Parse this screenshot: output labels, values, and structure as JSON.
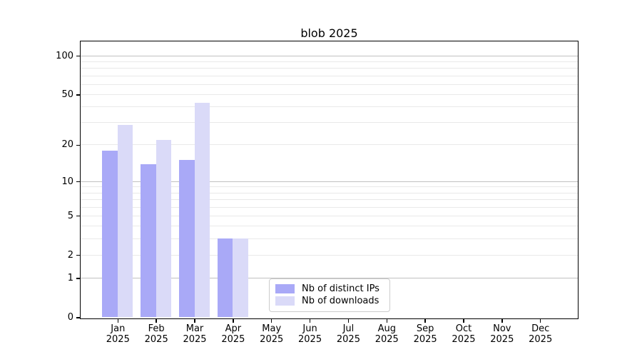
{
  "figure": {
    "background": "#ffffff"
  },
  "chart_data": {
    "type": "bar",
    "title": "blob 2025",
    "categories": [
      "Jan 2025",
      "Feb 2025",
      "Mar 2025",
      "Apr 2025",
      "May 2025",
      "Jun 2025",
      "Jul 2025",
      "Aug 2025",
      "Sep 2025",
      "Oct 2025",
      "Nov 2025",
      "Dec 2025"
    ],
    "series": [
      {
        "name": "Nb of distinct IPs",
        "color": "#a9a9f7",
        "values": [
          18,
          14,
          15,
          3,
          0,
          0,
          0,
          0,
          0,
          0,
          0,
          0
        ]
      },
      {
        "name": "Nb of downloads",
        "color": "#dadaf8",
        "values": [
          29,
          22,
          43,
          3,
          0,
          0,
          0,
          0,
          0,
          0,
          0,
          0
        ]
      }
    ],
    "yscale": "log1p",
    "ylim": [
      0,
      130
    ],
    "y_ticks_labeled": [
      0,
      1,
      2,
      5,
      10,
      20,
      50,
      100
    ],
    "y_grid_major": [
      1,
      10,
      100
    ],
    "y_grid_minor": [
      2,
      3,
      4,
      5,
      6,
      7,
      8,
      9,
      20,
      30,
      40,
      50,
      60,
      70,
      80,
      90
    ],
    "grid": true,
    "legend_position": "inside-lower-center",
    "xlabel": "",
    "ylabel": ""
  },
  "colors": {
    "grid_major": "#c1c1c1",
    "grid_minor": "#e9e9e9",
    "spine": "#000000",
    "text": "#000000"
  }
}
